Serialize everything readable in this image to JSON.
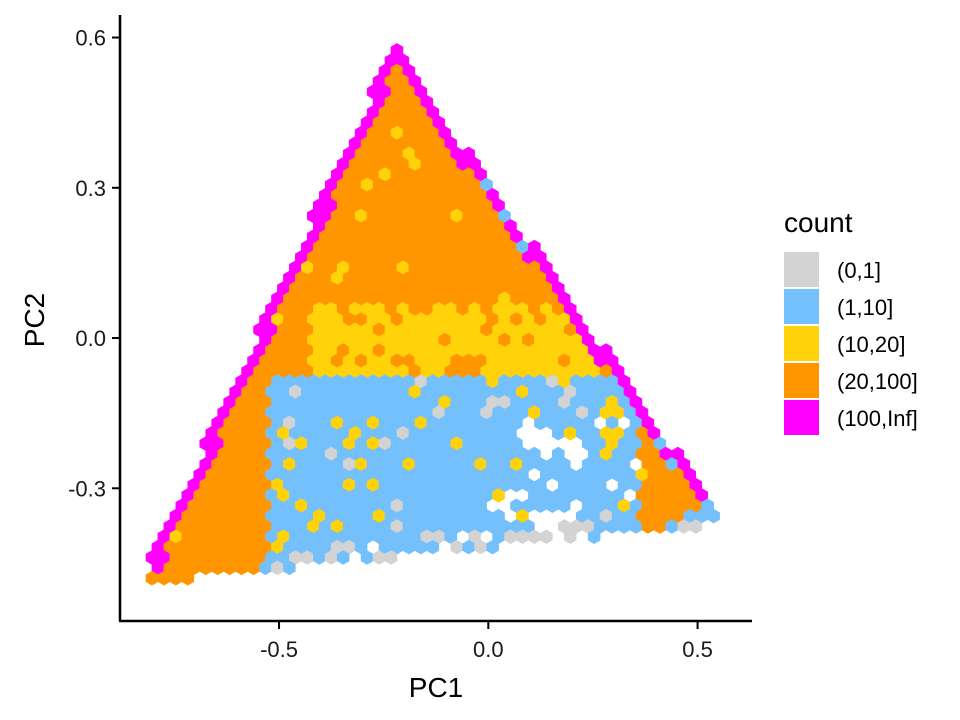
{
  "chart_data": {
    "type": "hexbin",
    "xlabel": "PC1",
    "ylabel": "PC2",
    "xlim": [
      -0.88,
      0.63
    ],
    "ylim": [
      -0.565,
      0.645
    ],
    "x_ticks": [
      {
        "value": -0.5,
        "label": "-0.5"
      },
      {
        "value": 0.0,
        "label": "0.0"
      },
      {
        "value": 0.5,
        "label": "0.5"
      }
    ],
    "y_ticks": [
      {
        "value": 0.6,
        "label": "0.6"
      },
      {
        "value": 0.3,
        "label": "0.3"
      },
      {
        "value": 0.0,
        "label": "0.0"
      },
      {
        "value": -0.3,
        "label": "-0.3"
      }
    ],
    "grid": false,
    "legend": {
      "title": "count",
      "placement": "right",
      "entries": [
        {
          "label": "(0,1]",
          "color": "#D3D3D3"
        },
        {
          "label": "(1,10]",
          "color": "#74C0FC"
        },
        {
          "label": "(10,20]",
          "color": "#FFD20A"
        },
        {
          "label": "(20,100]",
          "color": "#FF9600"
        },
        {
          "label": "(100,Inf]",
          "color": "#FF00FF"
        }
      ]
    },
    "triangle_vertices": [
      {
        "x": -0.835,
        "y": -0.49
      },
      {
        "x": -0.225,
        "y": 0.585
      },
      {
        "x": 0.57,
        "y": -0.37
      }
    ],
    "regions": [
      {
        "bin": "(100,Inf]",
        "description": "narrow band along all three edges"
      },
      {
        "bin": "(20,100]",
        "description": "upper and left interior"
      },
      {
        "bin": "(10,20]",
        "description": "central band near PC2 = 0"
      },
      {
        "bin": "(1,10]",
        "description": "lower central region"
      },
      {
        "bin": "(0,1]",
        "description": "sparse cells near the lower edge"
      }
    ]
  }
}
